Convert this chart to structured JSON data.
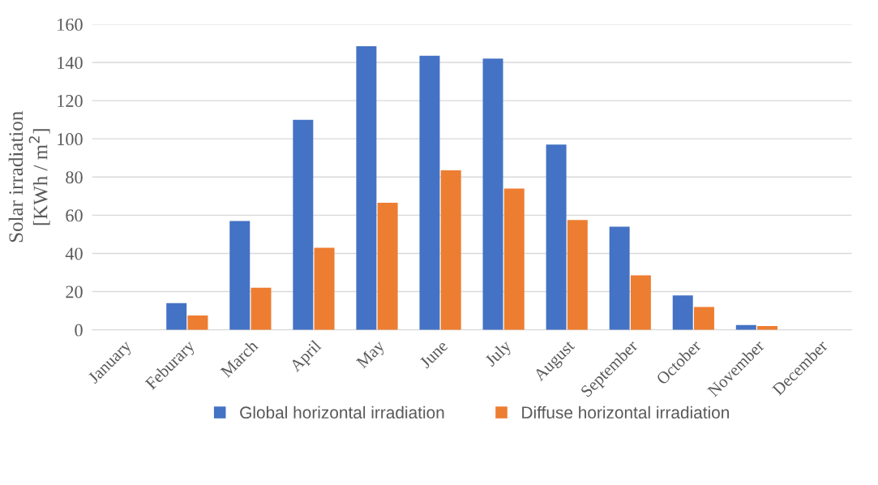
{
  "chart_data": {
    "type": "bar",
    "ylabel": "Solar irradiation\n[KWh / m$^{2}$]",
    "categories": [
      "January",
      "Feburary",
      "March",
      "April",
      "May",
      "June",
      "July",
      "August",
      "September",
      "October",
      "November",
      "December"
    ],
    "series": [
      {
        "name": "Global horizontal irradiation",
        "color": "#4472c4",
        "values": [
          0,
          14,
          57,
          110,
          148.5,
          143.5,
          142,
          97,
          54,
          18,
          2.5,
          0
        ]
      },
      {
        "name": "Diffuse horizontal irradiation",
        "color": "#ed7d31",
        "values": [
          0,
          7.5,
          22,
          43,
          66.5,
          83.5,
          74,
          57.5,
          28.5,
          12,
          2,
          0
        ]
      }
    ],
    "ylim": [
      0,
      160
    ],
    "yticks": [
      0,
      20,
      40,
      60,
      80,
      100,
      120,
      140,
      160
    ],
    "grid": "y",
    "legend": "bottom"
  }
}
